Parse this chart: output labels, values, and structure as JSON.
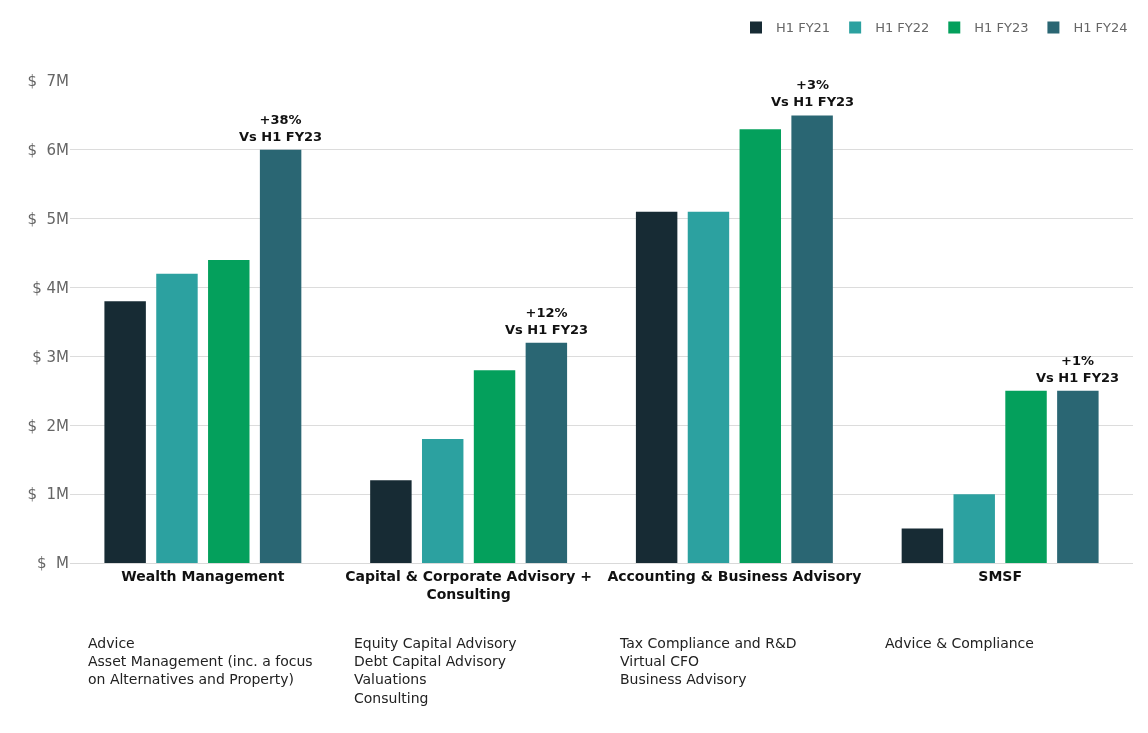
{
  "chart_data": {
    "type": "bar",
    "categories": [
      "Wealth Management",
      "Capital & Corporate Advisory + Consulting",
      "Accounting & Business Advisory",
      "SMSF"
    ],
    "series": [
      {
        "name": "H1 FY21",
        "color": "#172b34",
        "values": [
          3.8,
          1.2,
          5.1,
          0.5
        ]
      },
      {
        "name": "H1 FY22",
        "color": "#2ca1a0",
        "values": [
          4.2,
          1.8,
          5.1,
          1.0
        ]
      },
      {
        "name": "H1 FY23",
        "color": "#04a05c",
        "values": [
          4.4,
          2.8,
          6.3,
          2.5
        ]
      },
      {
        "name": "H1 FY24",
        "color": "#2a6673",
        "values": [
          6.0,
          3.2,
          6.5,
          2.5
        ]
      }
    ],
    "ylim": [
      0,
      7
    ],
    "yticks": [
      {
        "value": 0,
        "label": "$  M"
      },
      {
        "value": 1,
        "label": "$  1M"
      },
      {
        "value": 2,
        "label": "$  2M"
      },
      {
        "value": 3,
        "label": "$ 3M"
      },
      {
        "value": 4,
        "label": "$ 4M"
      },
      {
        "value": 5,
        "label": "$  5M"
      },
      {
        "value": 6,
        "label": "$  6M"
      },
      {
        "value": 7,
        "label": "$  7M"
      }
    ],
    "grid": "y",
    "legend": "top right",
    "annotations": [
      "+38%\nVs H1 FY23",
      "+12%\nVs H1 FY23",
      "+3%\nVs H1 FY23",
      "+1%\nVs H1 FY23",
      "Advice\nAsset Management (inc. a focus\non Alternatives and Property)",
      "Equity Capital Advisory\nDebt Capital Advisory\nValuations\nConsulting",
      "Tax Compliance and R&D\nVirtual CFO\nBusiness Advisory",
      "Advice & Compliance"
    ]
  }
}
